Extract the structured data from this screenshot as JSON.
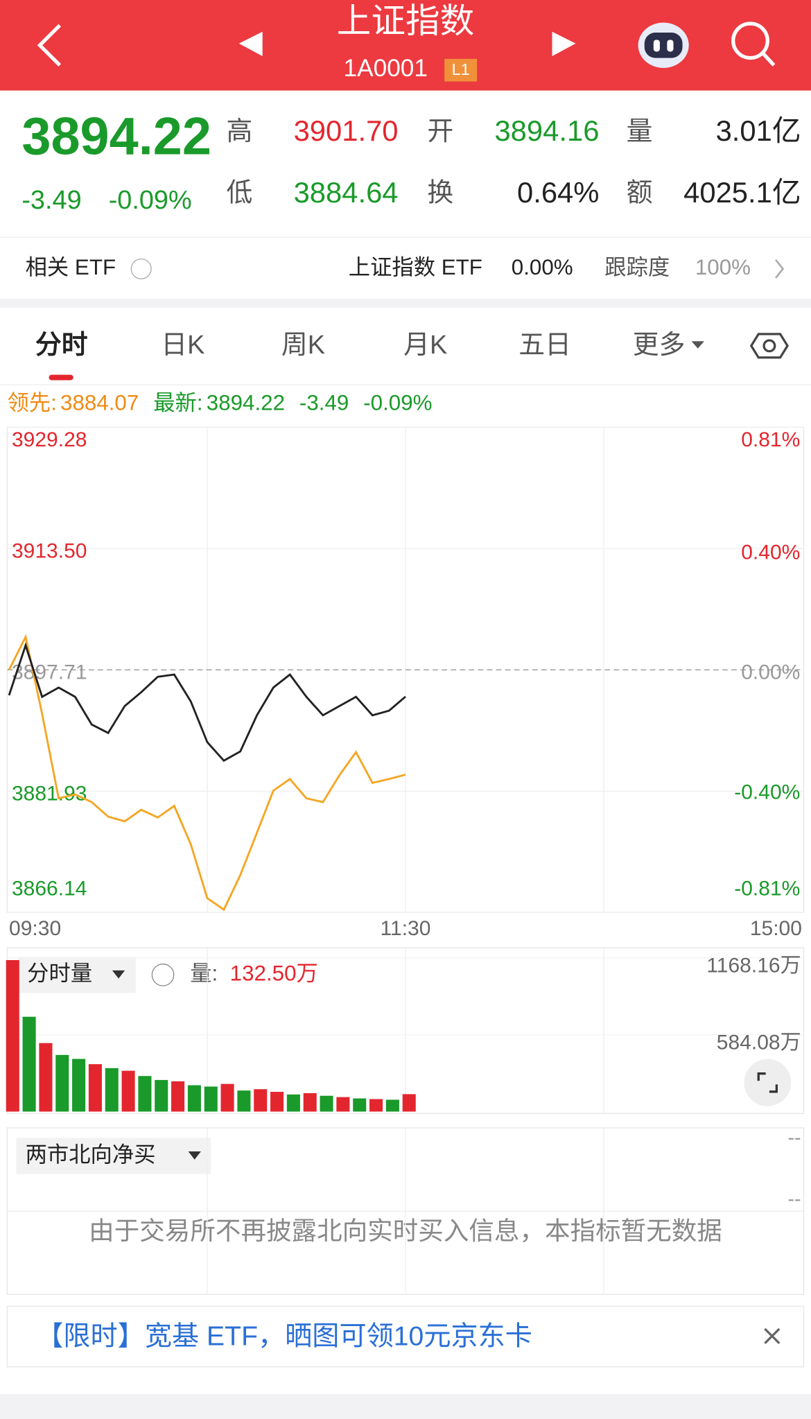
{
  "header": {
    "title": "上证指数",
    "code": "1A0001",
    "badge": "L1"
  },
  "quote": {
    "price": "3894.22",
    "change": "-3.49",
    "change_pct": "-0.09%",
    "high_label": "高",
    "high": "3901.70",
    "open_label": "开",
    "open": "3894.16",
    "volume_label": "量",
    "volume": "3.01亿",
    "low_label": "低",
    "low": "3884.64",
    "turnover_label": "换",
    "turnover": "0.64%",
    "amount_label": "额",
    "amount": "4025.1亿"
  },
  "etf": {
    "label": "相关 ETF",
    "name": "上证指数 ETF",
    "change": "0.00%",
    "track_label": "跟踪度",
    "track": "100%"
  },
  "tabs": [
    "分时",
    "日K",
    "周K",
    "月K",
    "五日",
    "更多"
  ],
  "chart_data": [
    {
      "type": "line",
      "categories": [
        "09:30",
        null,
        null,
        null,
        null,
        null,
        null,
        null,
        null,
        null,
        null,
        null,
        null,
        null,
        null,
        null,
        null,
        null,
        null,
        null,
        null,
        null,
        null,
        null,
        "11:30",
        null,
        null,
        null,
        null,
        null,
        null,
        null,
        null,
        null,
        null,
        null,
        null,
        null,
        null,
        null,
        null,
        null,
        null,
        null,
        null,
        null,
        null,
        null,
        "15:00"
      ],
      "series": [
        {
          "name": "领先:",
          "color": "#f5a623",
          "values": [
            3897.7,
            3902.0,
            3892.0,
            3881.0,
            3881.5,
            3880.5,
            3878.6,
            3878.0,
            3879.5,
            3878.5,
            3880.0,
            3875.0,
            3868.0,
            3866.5,
            3871.0,
            3876.5,
            3882.0,
            3883.5,
            3881.0,
            3880.5,
            3884.0,
            3887.0,
            3883.0,
            3883.5,
            3884.07,
            null,
            null,
            null,
            null,
            null,
            null,
            null,
            null,
            null,
            null,
            null,
            null,
            null,
            null,
            null,
            null,
            null,
            null,
            null,
            null,
            null,
            null,
            null,
            null
          ]
        },
        {
          "name": "最新:",
          "color": "#222222",
          "values": [
            3894.4,
            3900.9,
            3894.2,
            3895.4,
            3894.2,
            3890.6,
            3889.5,
            3893.0,
            3894.8,
            3896.8,
            3897.1,
            3893.6,
            3888.3,
            3885.9,
            3887.1,
            3891.8,
            3895.4,
            3897.1,
            3894.2,
            3891.8,
            3893.0,
            3894.2,
            3891.8,
            3892.4,
            3894.22,
            null,
            null,
            null,
            null,
            null,
            null,
            null,
            null,
            null,
            null,
            null,
            null,
            null,
            null,
            null,
            null,
            null,
            null,
            null,
            null,
            null,
            null,
            null,
            null
          ]
        }
      ],
      "latest_change": "-3.49",
      "latest_change_pct": "-0.09%",
      "ylim": [
        3866.14,
        3929.28
      ],
      "yticks": [
        3929.28,
        {
          "value": 3913.5,
          "label": "3913.50"
        },
        3897.71,
        3881.93,
        3866.14
      ],
      "y2lim": [
        -0.81,
        0.81
      ],
      "y2ticks": [
        {
          "value": 0.81,
          "label": "0.81%"
        },
        {
          "value": 0.4,
          "label": "0.40%"
        },
        {
          "value": 0,
          "label": "0.00%"
        },
        {
          "value": -0.4,
          "label": "-0.40%"
        },
        {
          "value": -0.81,
          "label": "-0.81%"
        }
      ],
      "grid": true
    },
    {
      "type": "bar",
      "title": "分时量",
      "value_label": "量:",
      "current": "132.50万",
      "values": [
        1150,
        720,
        520,
        430,
        400,
        360,
        330,
        310,
        270,
        240,
        230,
        200,
        190,
        210,
        160,
        170,
        150,
        130,
        140,
        120,
        110,
        100,
        95,
        90,
        132.5
      ],
      "colors": [
        "#e3262e",
        "#1a9a2a",
        "#e3262e",
        "#1a9a2a",
        "#1a9a2a",
        "#e3262e",
        "#1a9a2a",
        "#e3262e",
        "#1a9a2a",
        "#1a9a2a",
        "#e3262e",
        "#1a9a2a",
        "#1a9a2a",
        "#e3262e",
        "#1a9a2a",
        "#e3262e",
        "#e3262e",
        "#1a9a2a",
        "#e3262e",
        "#1a9a2a",
        "#e3262e",
        "#1a9a2a",
        "#e3262e",
        "#1a9a2a",
        "#e3262e"
      ],
      "ylim": [
        0,
        1168.16
      ],
      "yticks": [
        {
          "value": 584.08,
          "label": "584.08万"
        },
        {
          "value": 1168.16,
          "label": "1168.16万"
        }
      ]
    }
  ],
  "north": {
    "title": "两市北向净买",
    "dashes": [
      "--",
      "--"
    ],
    "message": "由于交易所不再披露北向实时买入信息，本指标暂无数据"
  },
  "banner": {
    "text": "【限时】宽基 ETF，晒图可领10元京东卡"
  }
}
